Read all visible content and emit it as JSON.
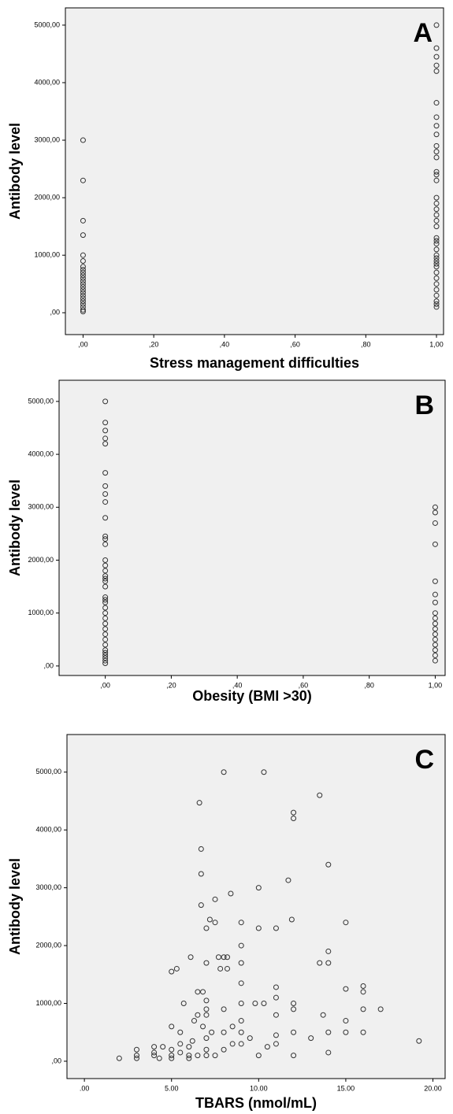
{
  "chart_data": [
    {
      "type": "scatter",
      "annotation": "A",
      "y_label": "Antibody level",
      "x_label": "Stress management difficulties",
      "color": "#333333",
      "x": [
        0,
        0,
        0,
        0,
        0,
        0,
        0,
        0,
        0,
        0,
        0,
        0,
        0,
        0,
        0,
        0,
        0,
        0,
        0,
        0,
        0,
        0,
        0,
        1,
        1,
        1,
        1,
        1,
        1,
        1,
        1,
        1,
        1,
        1,
        1,
        1,
        1,
        1,
        1,
        1,
        1,
        1,
        1,
        1,
        1,
        1,
        1,
        1,
        1,
        1,
        1,
        1,
        1,
        1,
        1,
        1,
        1,
        1,
        1,
        1,
        1
      ],
      "values": [
        3000,
        2300,
        1600,
        1350,
        1000,
        900,
        800,
        750,
        700,
        650,
        600,
        550,
        500,
        450,
        400,
        350,
        300,
        250,
        200,
        150,
        100,
        50,
        20,
        5000,
        4600,
        4450,
        4300,
        4200,
        3650,
        3400,
        3250,
        3100,
        2900,
        2800,
        2700,
        2450,
        2400,
        2300,
        2000,
        1900,
        1800,
        1700,
        1600,
        1500,
        1300,
        1250,
        1200,
        1100,
        1000,
        950,
        900,
        850,
        800,
        700,
        600,
        500,
        400,
        300,
        200,
        150,
        100
      ],
      "xlim": [
        -0.05,
        1.02
      ],
      "ylim": [
        -380,
        5300
      ],
      "xticks": [
        {
          "value": 0,
          "label": ",00"
        },
        {
          "value": 0.2,
          "label": ",20"
        },
        {
          "value": 0.4,
          "label": ",40"
        },
        {
          "value": 0.6,
          "label": ",60"
        },
        {
          "value": 0.8,
          "label": ",80"
        },
        {
          "value": 1,
          "label": "1,00"
        }
      ],
      "yticks": [
        {
          "value": 0,
          "label": ",00"
        },
        {
          "value": 1000,
          "label": "1000,00"
        },
        {
          "value": 2000,
          "label": "2000,00"
        },
        {
          "value": 3000,
          "label": "3000,00"
        },
        {
          "value": 4000,
          "label": "4000,00"
        },
        {
          "value": 5000,
          "label": "5000,00"
        }
      ]
    },
    {
      "type": "scatter",
      "annotation": "B",
      "y_label": "Antibody level",
      "x_label": "Obesity (BMI >30)",
      "color": "#333333",
      "x": [
        0,
        0,
        0,
        0,
        0,
        0,
        0,
        0,
        0,
        0,
        0,
        0,
        0,
        0,
        0,
        0,
        0,
        0,
        0,
        0,
        0,
        0,
        0,
        0,
        0,
        0,
        0,
        0,
        0,
        0,
        0,
        0,
        0,
        0,
        0,
        0,
        0,
        1,
        1,
        1,
        1,
        1,
        1,
        1,
        1,
        1,
        1,
        1,
        1,
        1,
        1,
        1,
        1,
        1
      ],
      "values": [
        5000,
        4600,
        4450,
        4300,
        4200,
        3650,
        3400,
        3250,
        3100,
        2800,
        2450,
        2400,
        2300,
        2000,
        1900,
        1800,
        1700,
        1650,
        1600,
        1500,
        1300,
        1250,
        1200,
        1100,
        1000,
        900,
        800,
        700,
        600,
        500,
        400,
        300,
        250,
        200,
        150,
        100,
        50,
        3000,
        2900,
        2700,
        2300,
        1600,
        1350,
        1200,
        1000,
        900,
        800,
        700,
        600,
        500,
        400,
        300,
        200,
        100
      ],
      "xlim": [
        -0.14,
        1.03
      ],
      "ylim": [
        -180,
        5400
      ],
      "xticks": [
        {
          "value": 0,
          "label": ",00"
        },
        {
          "value": 0.2,
          "label": ",20"
        },
        {
          "value": 0.4,
          "label": ",40"
        },
        {
          "value": 0.6,
          "label": ",60"
        },
        {
          "value": 0.8,
          "label": ",80"
        },
        {
          "value": 1,
          "label": "1,00"
        }
      ],
      "yticks": [
        {
          "value": 0,
          "label": ",00"
        },
        {
          "value": 1000,
          "label": "1000,00"
        },
        {
          "value": 2000,
          "label": "2000,00"
        },
        {
          "value": 3000,
          "label": "3000,00"
        },
        {
          "value": 4000,
          "label": "4000,00"
        },
        {
          "value": 5000,
          "label": "5000,00"
        }
      ]
    },
    {
      "type": "scatter",
      "annotation": "C",
      "y_label": "Antibody level",
      "x_label": "TBARS (nmol/mL)",
      "color": "#333333",
      "x": [
        2,
        3,
        3,
        3,
        4,
        4,
        4,
        4.3,
        4.5,
        5,
        5,
        5,
        5,
        5,
        5.3,
        5.5,
        5.5,
        5.5,
        5.7,
        6,
        6,
        6,
        6.1,
        6.2,
        6.3,
        6.5,
        6.5,
        6.5,
        6.6,
        6.7,
        6.7,
        6.7,
        6.8,
        6.8,
        7,
        7,
        7,
        7,
        7,
        7,
        7,
        7,
        7.2,
        7.3,
        7.5,
        7.5,
        7.5,
        7.7,
        7.8,
        8,
        8,
        8,
        8,
        8,
        8.2,
        8.2,
        8.4,
        8.5,
        8.5,
        9,
        9,
        9,
        9,
        9,
        9,
        9,
        9,
        9.5,
        9.8,
        10,
        10,
        10,
        10.3,
        10.3,
        10.5,
        11,
        11,
        11,
        11,
        11,
        11,
        11.7,
        11.9,
        12,
        12,
        12,
        12,
        12,
        12,
        13,
        13.5,
        13.5,
        13.7,
        14,
        14,
        14,
        14,
        14,
        15,
        15,
        15,
        15,
        16,
        16,
        16,
        16,
        17,
        19.2
      ],
      "values": [
        50,
        200,
        100,
        50,
        250,
        150,
        100,
        50,
        250,
        600,
        200,
        100,
        50,
        1550,
        1600,
        500,
        300,
        150,
        1000,
        50,
        250,
        100,
        1800,
        350,
        700,
        800,
        1200,
        100,
        4470,
        3670,
        3240,
        2700,
        1200,
        600,
        2300,
        1700,
        1050,
        900,
        800,
        400,
        200,
        100,
        2450,
        500,
        2400,
        2800,
        100,
        1800,
        1600,
        5000,
        1800,
        900,
        500,
        200,
        1800,
        1600,
        2900,
        600,
        300,
        2400,
        2000,
        1700,
        1350,
        1000,
        700,
        500,
        300,
        400,
        1000,
        3000,
        2300,
        100,
        5000,
        1000,
        250,
        2300,
        1280,
        1100,
        800,
        450,
        300,
        3130,
        2450,
        4300,
        4200,
        1000,
        900,
        500,
        100,
        400,
        4600,
        1700,
        800,
        3400,
        1900,
        1700,
        500,
        150,
        2400,
        1250,
        700,
        500,
        1300,
        1200,
        900,
        500,
        900,
        350
      ],
      "xlim": [
        -1,
        20.7
      ],
      "ylim": [
        -300,
        5650
      ],
      "xticks": [
        {
          "value": 0,
          "label": ".00"
        },
        {
          "value": 5,
          "label": "5.00"
        },
        {
          "value": 10,
          "label": "10.00"
        },
        {
          "value": 15,
          "label": "15.00"
        },
        {
          "value": 20,
          "label": "20.00"
        }
      ],
      "yticks": [
        {
          "value": 0,
          "label": ",00"
        },
        {
          "value": 1000,
          "label": "1000,00"
        },
        {
          "value": 2000,
          "label": "2000,00"
        },
        {
          "value": 3000,
          "label": "3000,00"
        },
        {
          "value": 4000,
          "label": "4000,00"
        },
        {
          "value": 5000,
          "label": "5000,00"
        }
      ]
    }
  ]
}
